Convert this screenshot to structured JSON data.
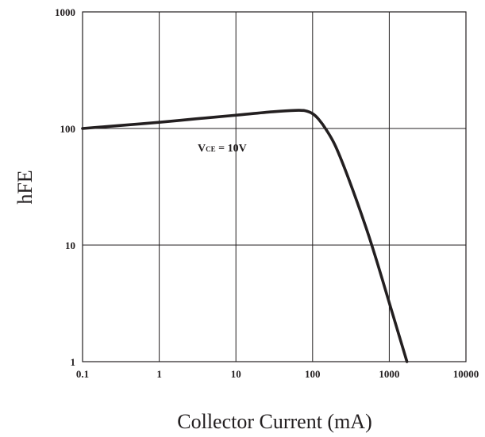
{
  "chart_data": {
    "type": "line",
    "x_scale": "log",
    "y_scale": "log",
    "xlim": [
      0.1,
      10000
    ],
    "ylim": [
      1,
      1000
    ],
    "grid": true,
    "xlabel": "Collector Current (mA)",
    "ylabel": "hFE",
    "x_ticks": [
      "0.1",
      "1",
      "10",
      "100",
      "1000",
      "10000"
    ],
    "y_ticks": [
      "1",
      "10",
      "100",
      "1000"
    ],
    "annotation": {
      "main": "V",
      "sub": "CE",
      "rest": " = 10V"
    },
    "series": [
      {
        "x": [
          0.1,
          0.3,
          1,
          3,
          10,
          30,
          60,
          80,
          100,
          120,
          150,
          200,
          300,
          500,
          700,
          1000,
          1300,
          1700
        ],
        "y": [
          100,
          106,
          113,
          121,
          130,
          139,
          143,
          142,
          134,
          120,
          98,
          70,
          36,
          14,
          7,
          3.2,
          1.8,
          1.0
        ]
      }
    ],
    "colors": {
      "line": "#231f20",
      "grid": "#231f20",
      "text": "#231f20"
    }
  }
}
